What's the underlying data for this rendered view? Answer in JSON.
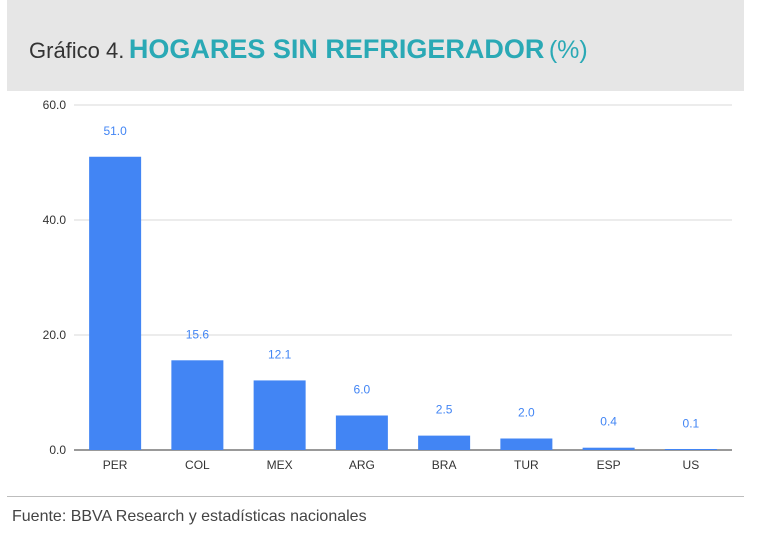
{
  "header": {
    "title_prefix": "Gráfico 4.",
    "title_main": "HOGARES SIN REFRIGERADOR",
    "title_unit": "(%)"
  },
  "footer": {
    "source": "Fuente: BBVA Research y estadísticas nacionales"
  },
  "colors": {
    "bar": "#4285f4",
    "data_label": "#4285f4",
    "title_accent": "#2aa9b5",
    "header_bg": "#e6e6e6"
  },
  "chart_data": {
    "type": "bar",
    "categories": [
      "PER",
      "COL",
      "MEX",
      "ARG",
      "BRA",
      "TUR",
      "ESP",
      "US"
    ],
    "values": [
      51.0,
      15.6,
      12.1,
      6.0,
      2.5,
      2.0,
      0.4,
      0.1
    ],
    "value_labels": [
      "51.0",
      "15.6",
      "12.1",
      "6.0",
      "2.5",
      "2.0",
      "0.4",
      "0.1"
    ],
    "yticks": [
      "0.0",
      "20.0",
      "40.0",
      "60.0"
    ],
    "ytick_values": [
      0,
      20,
      40,
      60
    ],
    "ylim": [
      0,
      60
    ],
    "grid": true,
    "xlabel": "",
    "ylabel": ""
  }
}
